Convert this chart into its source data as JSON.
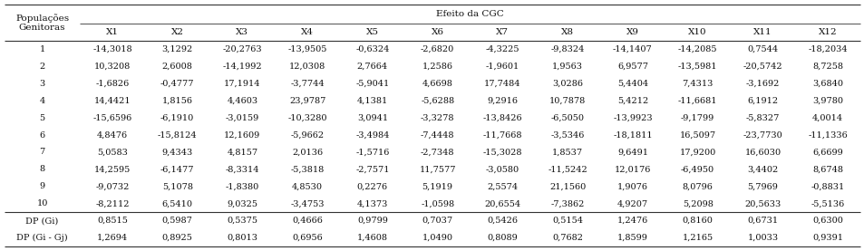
{
  "header_left": "Populações\nGenitoras",
  "header_right": "Efeito da CGC",
  "col_headers": [
    "X1",
    "X2",
    "X3",
    "X4",
    "X5",
    "X6",
    "X7",
    "X8",
    "X9",
    "X10",
    "X11",
    "X12"
  ],
  "row_labels": [
    "1",
    "2",
    "3",
    "4",
    "5",
    "6",
    "7",
    "8",
    "9",
    "10",
    "DP (Gi)",
    "DP (Gi - Gj)"
  ],
  "data": [
    [
      "-14,3018",
      "3,1292",
      "-20,2763",
      "-13,9505",
      "-0,6324",
      "-2,6820",
      "-4,3225",
      "-9,8324",
      "-14,1407",
      "-14,2085",
      "0,7544",
      "-18,2034"
    ],
    [
      "10,3208",
      "2,6008",
      "-14,1992",
      "12,0308",
      "2,7664",
      "1,2586",
      "-1,9601",
      "1,9563",
      "6,9577",
      "-13,5981",
      "-20,5742",
      "8,7258"
    ],
    [
      "-1,6826",
      "-0,4777",
      "17,1914",
      "-3,7744",
      "-5,9041",
      "4,6698",
      "17,7484",
      "3,0286",
      "5,4404",
      "7,4313",
      "-3,1692",
      "3,6840"
    ],
    [
      "14,4421",
      "1,8156",
      "4,4603",
      "23,9787",
      "4,1381",
      "-5,6288",
      "9,2916",
      "10,7878",
      "5,4212",
      "-11,6681",
      "6,1912",
      "3,9780"
    ],
    [
      "-15,6596",
      "-6,1910",
      "-3,0159",
      "-10,3280",
      "3,0941",
      "-3,3278",
      "-13,8426",
      "-6,5050",
      "-13,9923",
      "-9,1799",
      "-5,8327",
      "4,0014"
    ],
    [
      "4,8476",
      "-15,8124",
      "12,1609",
      "-5,9662",
      "-3,4984",
      "-7,4448",
      "-11,7668",
      "-3,5346",
      "-18,1811",
      "16,5097",
      "-23,7730",
      "-11,1336"
    ],
    [
      "5,0583",
      "9,4343",
      "4,8157",
      "2,0136",
      "-1,5716",
      "-2,7348",
      "-15,3028",
      "1,8537",
      "9,6491",
      "17,9200",
      "16,6030",
      "6,6699"
    ],
    [
      "14,2595",
      "-6,1477",
      "-8,3314",
      "-5,3818",
      "-2,7571",
      "11,7577",
      "-3,0580",
      "-11,5242",
      "12,0176",
      "-6,4950",
      "3,4402",
      "8,6748"
    ],
    [
      "-9,0732",
      "5,1078",
      "-1,8380",
      "4,8530",
      "0,2276",
      "5,1919",
      "2,5574",
      "21,1560",
      "1,9076",
      "8,0796",
      "5,7969",
      "-0,8831"
    ],
    [
      "-8,2112",
      "6,5410",
      "9,0325",
      "-3,4753",
      "4,1373",
      "-1,0598",
      "20,6554",
      "-7,3862",
      "4,9207",
      "5,2098",
      "20,5633",
      "-5,5136"
    ],
    [
      "0,8515",
      "0,5987",
      "0,5375",
      "0,4666",
      "0,9799",
      "0,7037",
      "0,5426",
      "0,5154",
      "1,2476",
      "0,8160",
      "0,6731",
      "0,6300"
    ],
    [
      "1,2694",
      "0,8925",
      "0,8013",
      "0,6956",
      "1,4608",
      "1,0490",
      "0,8089",
      "0,7682",
      "1,8599",
      "1,2165",
      "1,0033",
      "0,9391"
    ]
  ],
  "line_color": "#333333",
  "text_color": "#111111",
  "font_size": 7.0,
  "header_font_size": 7.5,
  "figsize": [
    9.54,
    2.77
  ],
  "dpi": 100
}
